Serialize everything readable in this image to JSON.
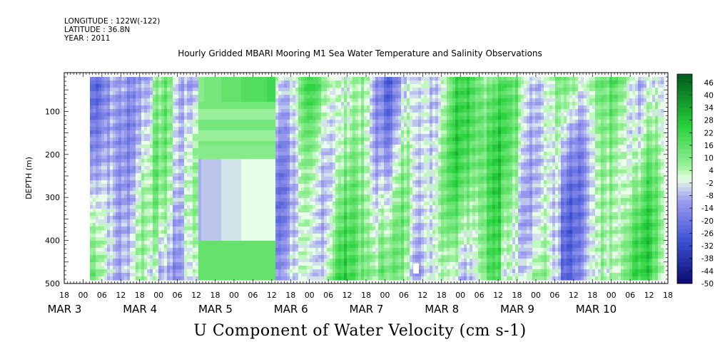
{
  "header": {
    "longitude": "LONGITUDE : 122W(-122)",
    "latitude": "LATITUDE : 36.8N",
    "year": "YEAR : 2011",
    "title": "Hourly Gridded MBARI Mooring M1 Sea Water Temperature and Salinity Observations"
  },
  "footer": {
    "variable_title": "U Component of Water Velocity (cm s-1)"
  },
  "chart_data": {
    "type": "heatmap",
    "title": "Hourly Gridded MBARI Mooring M1 Sea Water Temperature and Salinity Observations",
    "variable": "U Component of Water Velocity (cm s-1)",
    "ylabel": "DEPTH (m)",
    "y_ticks": [
      100,
      200,
      300,
      400,
      500
    ],
    "ylim": [
      10,
      500
    ],
    "y_inverted": true,
    "data_depth_range": [
      20,
      490
    ],
    "x_start_label": "MAR 2 18:00",
    "x_end_label": "MAR 10 18:00",
    "x_hour_ticks": [
      "18",
      "00",
      "06",
      "12",
      "18",
      "00",
      "06",
      "12",
      "18",
      "00",
      "06",
      "12",
      "18",
      "00",
      "06",
      "12",
      "18",
      "00",
      "06",
      "12",
      "18",
      "00",
      "06",
      "12",
      "18",
      "00",
      "06",
      "12",
      "18",
      "00",
      "06",
      "12",
      "18"
    ],
    "x_day_labels": [
      {
        "label": "MAR",
        "day": "3",
        "day_index": 1
      },
      {
        "label": "MAR",
        "day": "4",
        "day_index": 2
      },
      {
        "label": "MAR",
        "day": "5",
        "day_index": 3
      },
      {
        "label": "MAR",
        "day": "6",
        "day_index": 4
      },
      {
        "label": "MAR",
        "day": "7",
        "day_index": 5
      },
      {
        "label": "MAR",
        "day": "8",
        "day_index": 6
      },
      {
        "label": "MAR",
        "day": "9",
        "day_index": 7
      },
      {
        "label": "MAR",
        "day": "10",
        "day_index": 8
      }
    ],
    "colorbar": {
      "min": -50,
      "max": 50,
      "labels": [
        "46",
        "40",
        "34",
        "28",
        "22",
        "16",
        "10",
        "4",
        "-2",
        "-8",
        "-14",
        "-20",
        "-26",
        "-32",
        "-38",
        "-44",
        "-50"
      ],
      "colors": {
        "strong_negative": "#0a0a6e",
        "mid_negative": "#3c50d2",
        "weak_negative": "#a0a0f0",
        "near_zero": "#e6ffe6",
        "weak_positive": "#9af09a",
        "mid_positive": "#28d23c",
        "strong_positive": "#005a1e"
      }
    },
    "grid": false
  }
}
